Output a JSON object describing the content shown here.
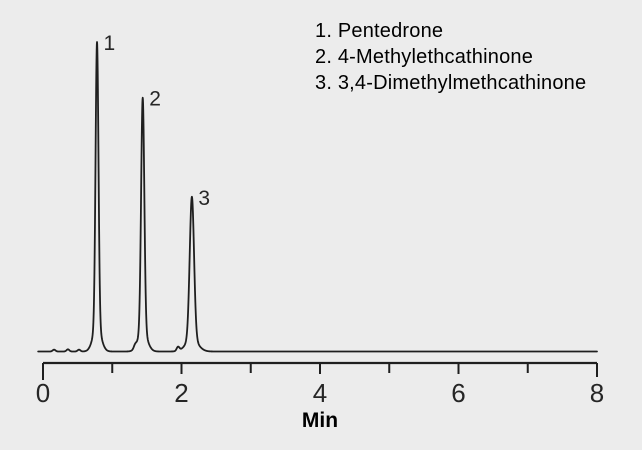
{
  "figure": {
    "kind": "HPLC chromatogram",
    "colors": {
      "background": "#ececec",
      "trace": "#1f1f1f",
      "text": "#262626"
    }
  },
  "legend": {
    "items": [
      {
        "text": "1. Pentedrone"
      },
      {
        "text": "2. 4-Methylethcathinone"
      },
      {
        "text": "3. 3,4-Dimethylmethcathinone"
      }
    ]
  },
  "chart_data": {
    "type": "line",
    "xlabel": "Min",
    "ylabel": "",
    "xlim": [
      0,
      8
    ],
    "x_ticks_labeled": [
      0,
      2,
      4,
      6,
      8
    ],
    "x_ticks_minor": [
      1,
      3,
      5,
      7
    ],
    "grid": false,
    "y_axis_shown": false,
    "peaks": [
      {
        "label": "1",
        "compound": "Pentedrone",
        "retention_min": 0.78,
        "relative_height": 1.0,
        "sigma_min": 0.021
      },
      {
        "label": "2",
        "compound": "4-Methylethcathinone",
        "retention_min": 1.44,
        "relative_height": 0.82,
        "sigma_min": 0.023
      },
      {
        "label": "3",
        "compound": "3,4-Dimethylmethcathinone",
        "retention_min": 2.15,
        "relative_height": 0.5,
        "sigma_min": 0.031
      }
    ],
    "baseline_blips": [
      {
        "t": 0.16,
        "height": 0.006
      },
      {
        "t": 0.36,
        "height": 0.007
      },
      {
        "t": 0.52,
        "height": 0.006
      },
      {
        "t": 1.33,
        "height": 0.01
      },
      {
        "t": 1.95,
        "height": 0.013
      }
    ]
  }
}
